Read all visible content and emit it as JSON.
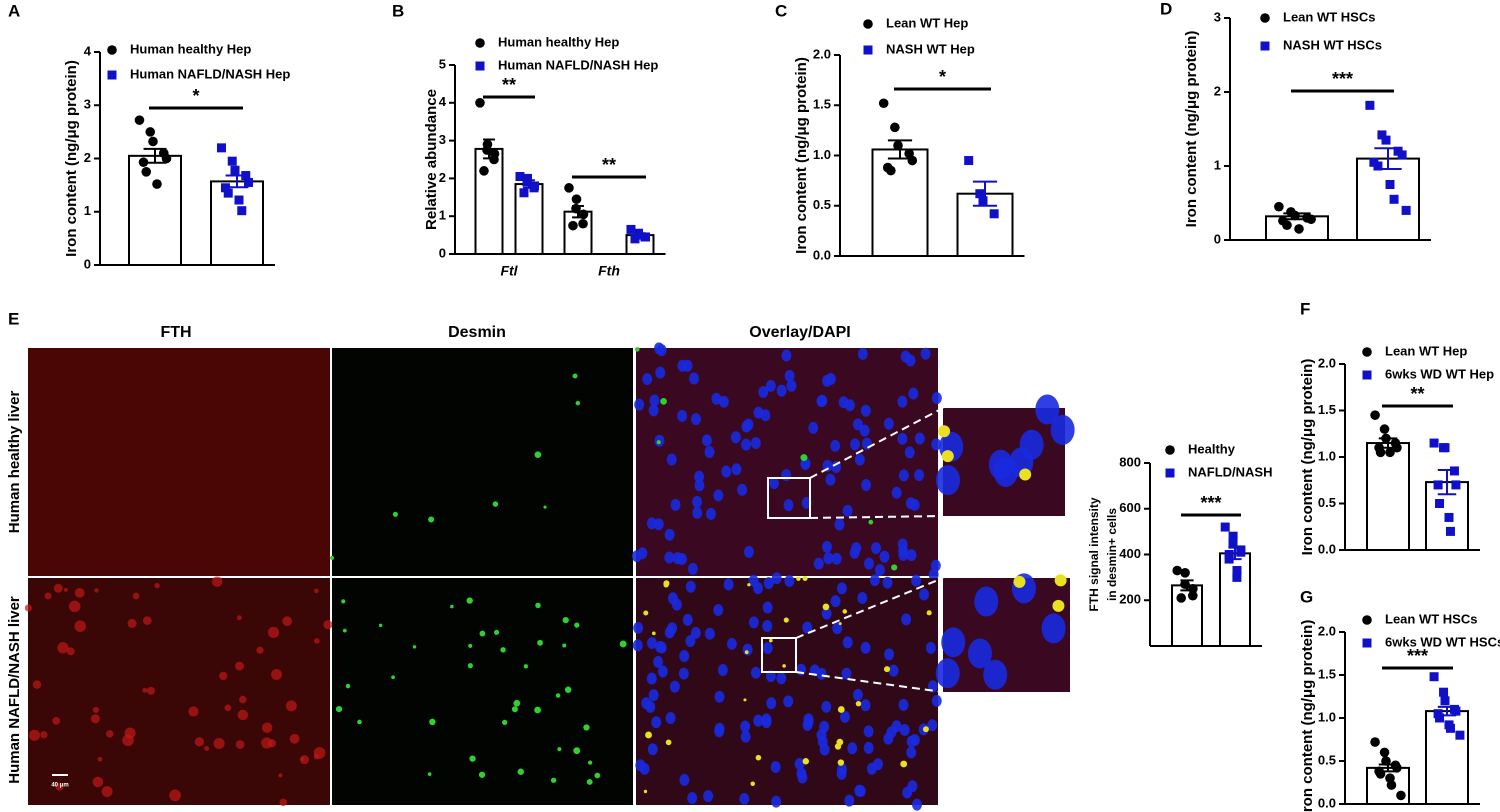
{
  "panel_e": {
    "panel": "E",
    "columns": [
      "FTH",
      "Desmin",
      "Overlay/DAPI"
    ],
    "rows": [
      "Human healthy liver",
      "Human NAFLD/NASH liver"
    ],
    "scale_bar": "40 μm"
  },
  "chart_data": [
    {
      "type": "bar",
      "panel": "A",
      "ylabel": "Iron content (ng/μg protein)",
      "categories": [
        null
      ],
      "significance": [
        "*"
      ],
      "ylim": [
        0,
        4
      ],
      "yticks": [
        0,
        1,
        2,
        3,
        4
      ],
      "series": [
        {
          "name": "Human healthy Hep",
          "color": "#000000",
          "marker": "circle",
          "values": [
            2.05
          ],
          "errors": [
            0.13
          ],
          "points": [
            [
              2.72,
              2.5,
              2.32,
              2.1,
              2.0,
              1.93,
              1.75,
              1.52
            ]
          ]
        },
        {
          "name": "Human NAFLD/NASH Hep",
          "color": "#1010c8",
          "marker": "square",
          "values": [
            1.57
          ],
          "errors": [
            0.11
          ],
          "points": [
            [
              2.2,
              1.95,
              1.78,
              1.68,
              1.55,
              1.45,
              1.35,
              1.22,
              1.02
            ]
          ]
        }
      ]
    },
    {
      "type": "bar",
      "panel": "B",
      "ylabel": "Relative abundance",
      "categories": [
        "Ftl",
        "Fth"
      ],
      "significance": [
        "**",
        "**"
      ],
      "ylim": [
        0,
        5
      ],
      "yticks": [
        0,
        1,
        2,
        3,
        4,
        5
      ],
      "series": [
        {
          "name": "Human healthy Hep",
          "color": "#000000",
          "marker": "circle",
          "values": [
            2.78,
            1.12
          ],
          "errors": [
            0.25,
            0.15
          ],
          "points": [
            [
              4.0,
              2.9,
              2.75,
              2.65,
              2.5,
              2.2
            ],
            [
              1.75,
              1.45,
              1.2,
              1.05,
              0.8,
              0.75
            ]
          ]
        },
        {
          "name": "Human NAFLD/NASH Hep",
          "color": "#1010c8",
          "marker": "square",
          "values": [
            1.85,
            0.5
          ],
          "errors": [
            0.1,
            0.05
          ],
          "points": [
            [
              2.05,
              2.0,
              1.9,
              1.8,
              1.75,
              1.62
            ],
            [
              0.65,
              0.55,
              0.5,
              0.45,
              0.45,
              0.4
            ]
          ]
        }
      ]
    },
    {
      "type": "bar",
      "panel": "C",
      "ylabel": "Iron content (ng/μg protein)",
      "categories": [
        null
      ],
      "significance": [
        "*"
      ],
      "ylim": [
        0,
        2
      ],
      "yticks": [
        {
          "value": 0,
          "label": "0.0"
        },
        {
          "value": 0.5,
          "label": "0.5"
        },
        {
          "value": 1,
          "label": "1.0"
        },
        {
          "value": 1.5,
          "label": "1.5"
        },
        {
          "value": 2,
          "label": "2.0"
        }
      ],
      "series": [
        {
          "name": "Lean WT Hep",
          "color": "#000000",
          "marker": "circle",
          "values": [
            1.06
          ],
          "errors": [
            0.09
          ],
          "points": [
            [
              1.52,
              1.28,
              1.1,
              1.02,
              0.95,
              0.88,
              0.85
            ]
          ]
        },
        {
          "name": "NASH WT Hep",
          "color": "#1010c8",
          "marker": "square",
          "values": [
            0.62
          ],
          "errors": [
            0.12
          ],
          "points": [
            [
              0.95,
              0.62,
              0.55,
              0.42
            ]
          ]
        }
      ]
    },
    {
      "type": "bar",
      "panel": "D",
      "ylabel": "Iron content (ng/μg protein)",
      "categories": [
        null
      ],
      "significance": [
        "***"
      ],
      "ylim": [
        0,
        3
      ],
      "yticks": [
        0,
        1,
        2,
        3
      ],
      "series": [
        {
          "name": "Lean WT HSCs",
          "color": "#000000",
          "marker": "circle",
          "values": [
            0.32
          ],
          "errors": [
            0.04
          ],
          "points": [
            [
              0.45,
              0.38,
              0.33,
              0.3,
              0.28,
              0.26,
              0.2,
              0.15
            ]
          ]
        },
        {
          "name": "NASH WT HSCs",
          "color": "#1010c8",
          "marker": "square",
          "values": [
            1.1
          ],
          "errors": [
            0.14
          ],
          "points": [
            [
              1.82,
              1.42,
              1.35,
              1.2,
              1.15,
              1.05,
              1.0,
              0.75,
              0.55,
              0.4
            ]
          ]
        }
      ]
    },
    {
      "type": "bar",
      "ylabel": [
        "FTH signal intensity",
        "in desmin+ cells"
      ],
      "categories": [
        null
      ],
      "significance": [
        "***"
      ],
      "ylim": [
        0,
        800
      ],
      "yticks": [
        200,
        400,
        600,
        800
      ],
      "series": [
        {
          "name": "Healthy",
          "color": "#000000",
          "marker": "circle",
          "values": [
            265
          ],
          "errors": [
            22
          ],
          "points": [
            [
              330,
              320,
              270,
              250,
              220,
              210
            ]
          ]
        },
        {
          "name": "NAFLD/NASH",
          "color": "#1010c8",
          "marker": "square",
          "values": [
            405
          ],
          "errors": [
            25
          ],
          "points": [
            [
              520,
              480,
              450,
              420,
              410,
              400,
              380,
              330,
              300
            ]
          ]
        }
      ]
    },
    {
      "type": "bar",
      "panel": "F",
      "ylabel": "Iron content (ng/μg protein)",
      "categories": [
        null
      ],
      "significance": [
        "**"
      ],
      "ylim": [
        0,
        2
      ],
      "yticks": [
        {
          "value": 0,
          "label": "0.0"
        },
        {
          "value": 0.5,
          "label": "0.5"
        },
        {
          "value": 1,
          "label": "1.0"
        },
        {
          "value": 1.5,
          "label": "1.5"
        },
        {
          "value": 2,
          "label": "2.0"
        }
      ],
      "series": [
        {
          "name": "Lean WT Hep",
          "color": "#000000",
          "marker": "circle",
          "values": [
            1.15
          ],
          "errors": [
            0.05
          ],
          "points": [
            [
              1.45,
              1.3,
              1.2,
              1.15,
              1.1,
              1.1,
              1.05,
              1.05
            ]
          ]
        },
        {
          "name": "6wks WD WT Hep",
          "color": "#1010c8",
          "marker": "square",
          "values": [
            0.73
          ],
          "errors": [
            0.13
          ],
          "points": [
            [
              1.15,
              1.1,
              1.1,
              0.85,
              0.7,
              0.7,
              0.5,
              0.35,
              0.2
            ]
          ]
        }
      ]
    },
    {
      "type": "bar",
      "panel": "G",
      "ylabel": "Iron content (ng/μg protein)",
      "categories": [
        null
      ],
      "significance": [
        "***"
      ],
      "ylim": [
        0,
        2
      ],
      "yticks": [
        {
          "value": 0,
          "label": "0.0"
        },
        {
          "value": 0.5,
          "label": "0.5"
        },
        {
          "value": 1,
          "label": "1.0"
        },
        {
          "value": 1.5,
          "label": "1.5"
        },
        {
          "value": 2,
          "label": "2.0"
        }
      ],
      "series": [
        {
          "name": "Lean WT HSCs",
          "color": "#000000",
          "marker": "circle",
          "values": [
            0.42
          ],
          "errors": [
            0.04
          ],
          "points": [
            [
              0.72,
              0.6,
              0.5,
              0.45,
              0.42,
              0.38,
              0.35,
              0.3,
              0.22,
              0.1
            ]
          ]
        },
        {
          "name": "6wks WD WT HSCs",
          "color": "#1010c8",
          "marker": "square",
          "values": [
            1.08
          ],
          "errors": [
            0.05
          ],
          "points": [
            [
              1.48,
              1.3,
              1.2,
              1.1,
              1.08,
              1.05,
              1.0,
              0.92,
              0.88,
              0.8
            ]
          ]
        }
      ]
    }
  ]
}
